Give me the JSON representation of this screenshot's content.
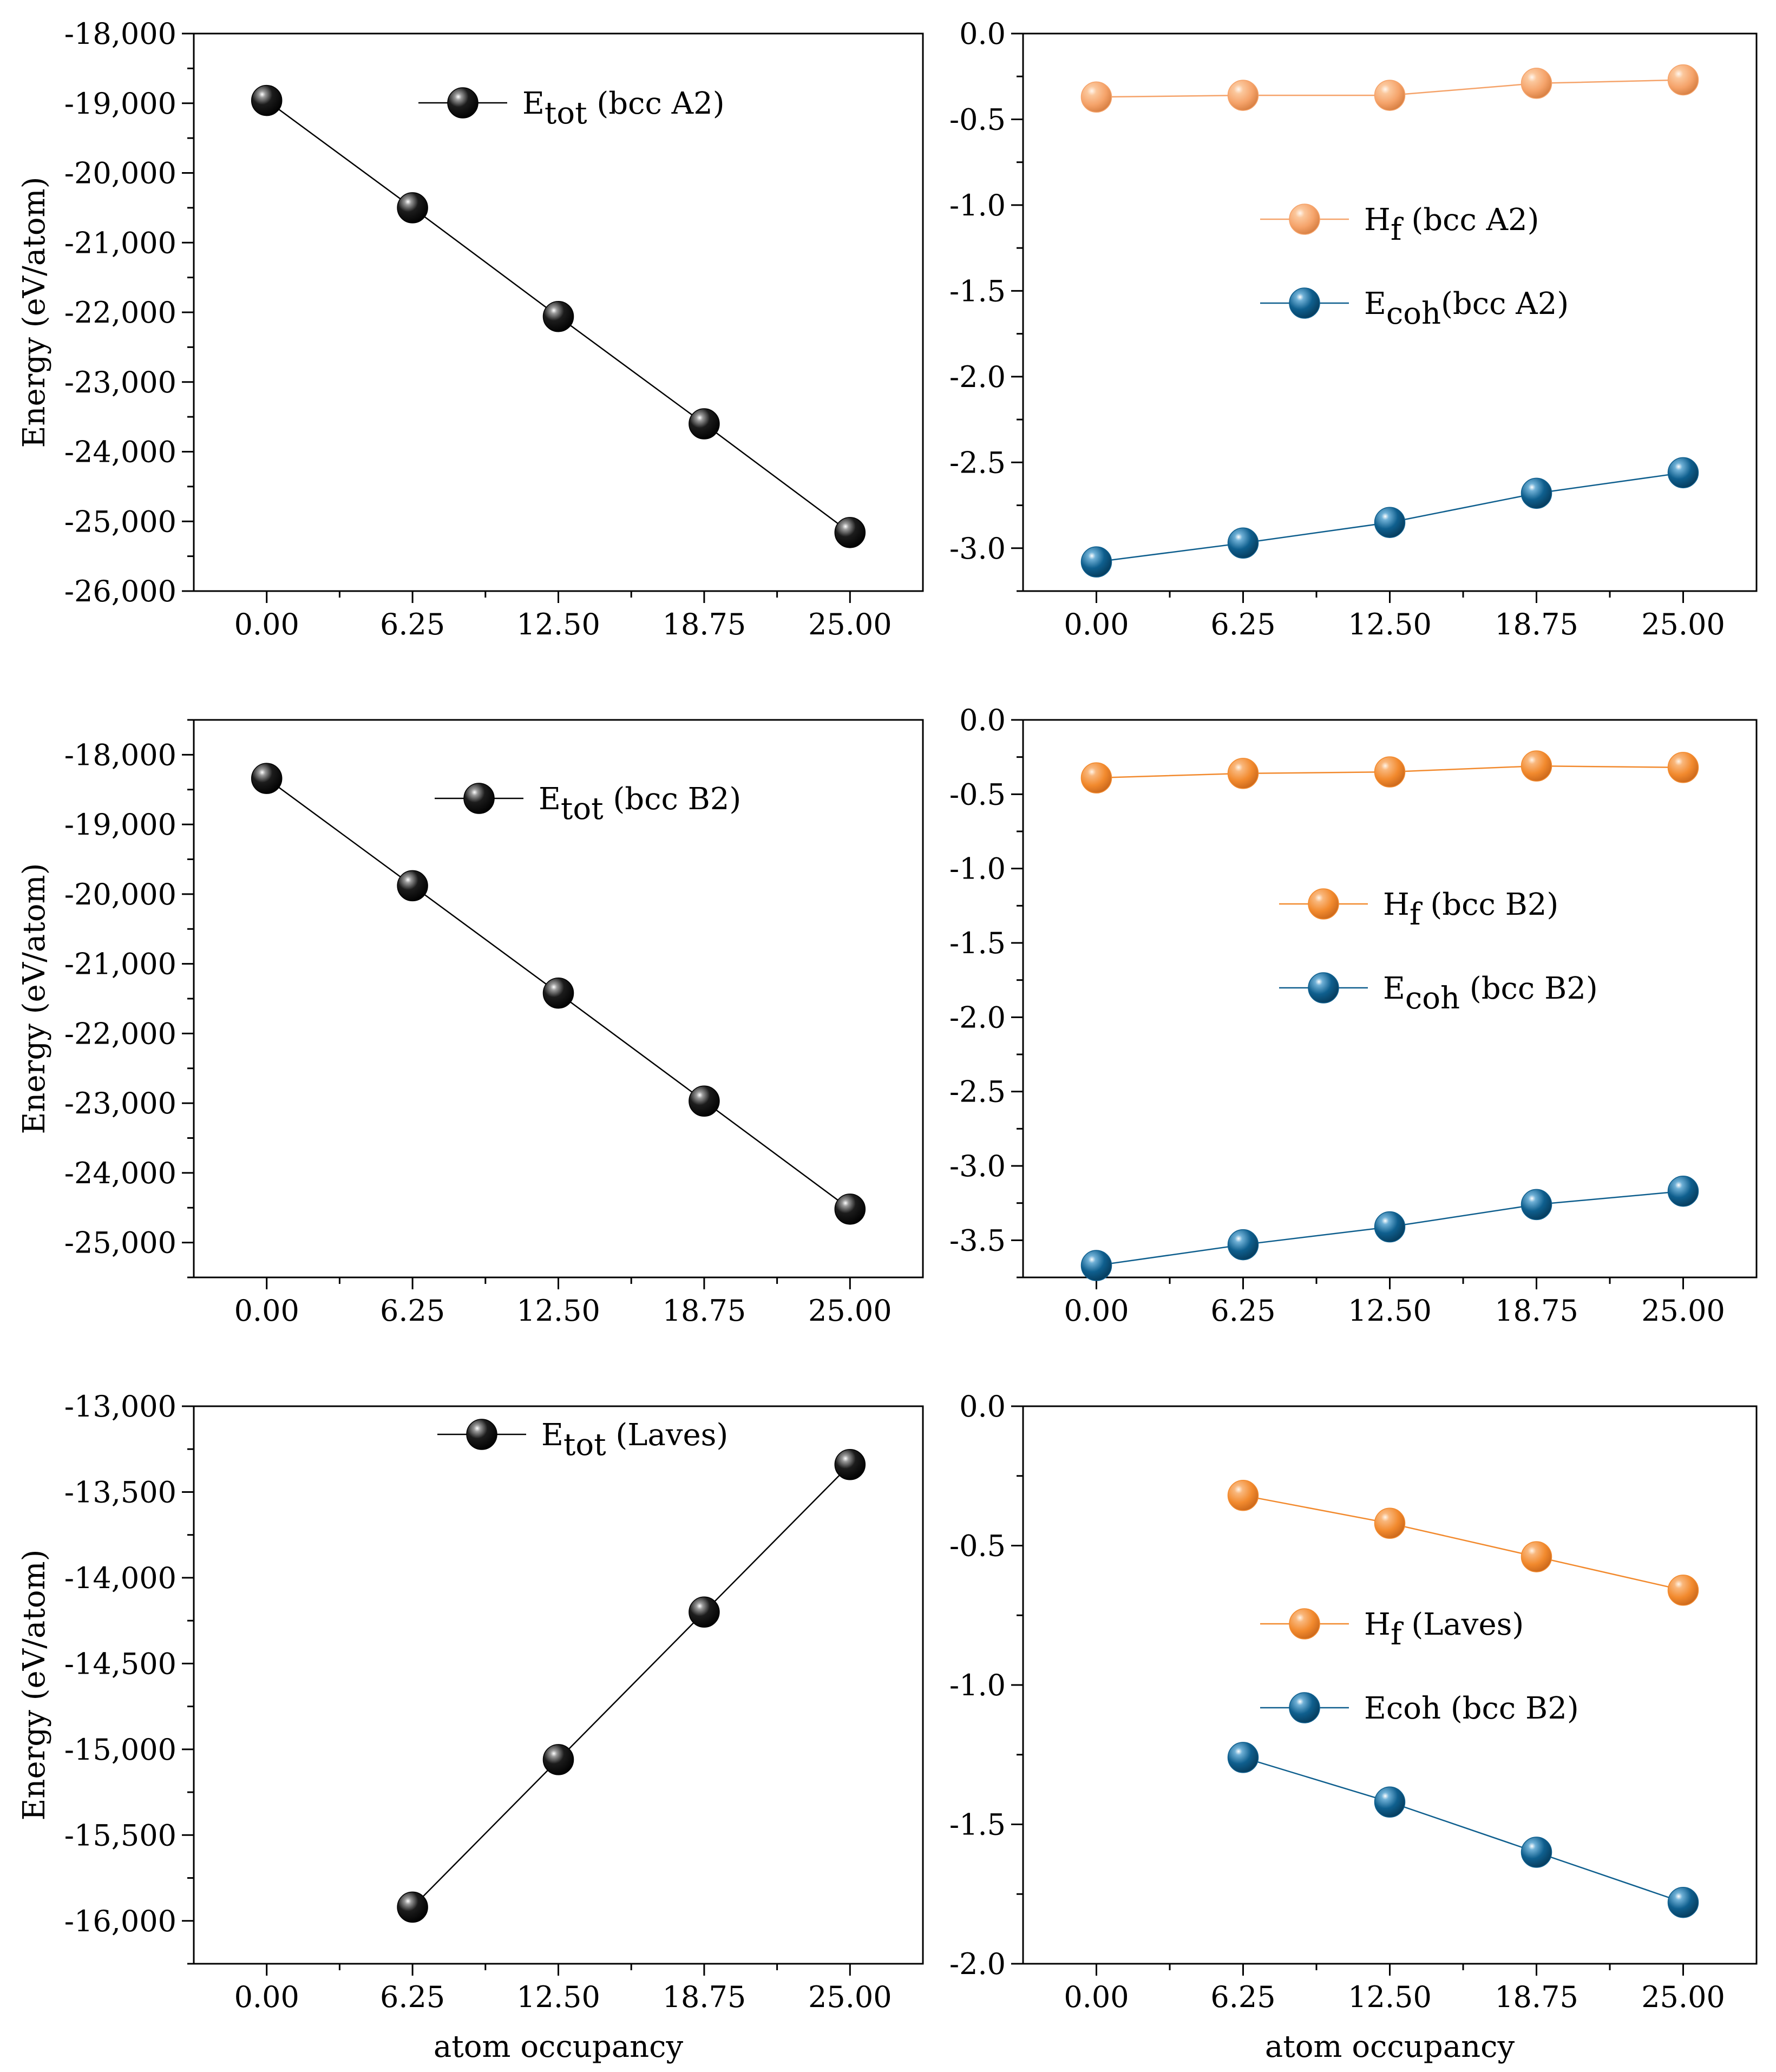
{
  "figure": {
    "colors": {
      "black": "#111111",
      "orange": "#f28a2e",
      "orange_light": "#f5a36a",
      "blue": "#0f5f8e"
    }
  },
  "chart_data": [
    {
      "type": "line",
      "ylabel": "Energy (eV/atom)",
      "xlabel": "",
      "x_ticks": [
        "0.00",
        "6.25",
        "12.50",
        "18.75",
        "25.00"
      ],
      "y_ticks": [
        "-18,000",
        "-19,000",
        "-20,000",
        "-21,000",
        "-22,000",
        "-23,000",
        "-24,000",
        "-25,000",
        "-26,000"
      ],
      "xlim": [
        -3.125,
        28.125
      ],
      "ylim": [
        -26000,
        -18000
      ],
      "y_minor": true,
      "legend_position": "top-right",
      "series": [
        {
          "name": "E",
          "subscript": "tot",
          "suffix": " (bcc A2)",
          "color": "black",
          "x": [
            0,
            6.25,
            12.5,
            18.75,
            25
          ],
          "y": [
            -18960,
            -20500,
            -22060,
            -23600,
            -25160
          ]
        }
      ]
    },
    {
      "type": "line",
      "ylabel": "",
      "xlabel": "",
      "x_ticks": [
        "0.00",
        "6.25",
        "12.50",
        "18.75",
        "25.00"
      ],
      "y_ticks": [
        "0.0",
        "-0.5",
        "-1.0",
        "-1.5",
        "-2.0",
        "-2.5",
        "-3.0"
      ],
      "xlim": [
        -3.125,
        28.125
      ],
      "ylim": [
        -3.25,
        0
      ],
      "y_minor": true,
      "legend_position": "center-right",
      "series": [
        {
          "name": "H",
          "subscript": "f",
          "suffix": " (bcc A2)",
          "color": "orange_light",
          "x": [
            0,
            6.25,
            12.5,
            18.75,
            25
          ],
          "y": [
            -0.37,
            -0.36,
            -0.36,
            -0.29,
            -0.27
          ]
        },
        {
          "name": "E",
          "subscript": "coh",
          "suffix": "(bcc A2)",
          "color": "blue",
          "x": [
            0,
            6.25,
            12.5,
            18.75,
            25
          ],
          "y": [
            -3.08,
            -2.97,
            -2.85,
            -2.68,
            -2.56
          ]
        }
      ]
    },
    {
      "type": "line",
      "ylabel": "Energy (eV/atom)",
      "xlabel": "",
      "x_ticks": [
        "0.00",
        "6.25",
        "12.50",
        "18.75",
        "25.00"
      ],
      "y_ticks": [
        "-18,000",
        "-19,000",
        "-20,000",
        "-21,000",
        "-22,000",
        "-23,000",
        "-24,000",
        "-25,000"
      ],
      "xlim": [
        -3.125,
        28.125
      ],
      "ylim": [
        -25500,
        -17500
      ],
      "y_minor": true,
      "legend_position": "top-right",
      "series": [
        {
          "name": "E",
          "subscript": "tot",
          "suffix": " (bcc B2)",
          "color": "black",
          "x": [
            0,
            6.25,
            12.5,
            18.75,
            25
          ],
          "y": [
            -18340,
            -19880,
            -21420,
            -22970,
            -24520
          ]
        }
      ]
    },
    {
      "type": "line",
      "ylabel": "",
      "xlabel": "",
      "x_ticks": [
        "0.00",
        "6.25",
        "12.50",
        "18.75",
        "25.00"
      ],
      "y_ticks": [
        "0.0",
        "-0.5",
        "-1.0",
        "-1.5",
        "-2.0",
        "-2.5",
        "-3.0",
        "-3.5"
      ],
      "xlim": [
        -3.125,
        28.125
      ],
      "ylim": [
        -3.75,
        0
      ],
      "y_minor": true,
      "legend_position": "center-right",
      "series": [
        {
          "name": "H",
          "subscript": "f",
          "suffix": " (bcc B2)",
          "color": "orange",
          "x": [
            0,
            6.25,
            12.5,
            18.75,
            25
          ],
          "y": [
            -0.39,
            -0.36,
            -0.35,
            -0.31,
            -0.32
          ]
        },
        {
          "name": "E",
          "subscript": "coh",
          "suffix": " (bcc B2)",
          "color": "blue",
          "x": [
            0,
            6.25,
            12.5,
            18.75,
            25
          ],
          "y": [
            -3.67,
            -3.53,
            -3.41,
            -3.26,
            -3.17
          ]
        }
      ]
    },
    {
      "type": "line",
      "ylabel": "Energy (eV/atom)",
      "xlabel": "atom occupancy",
      "x_ticks": [
        "0.00",
        "6.25",
        "12.50",
        "18.75",
        "25.00"
      ],
      "y_ticks": [
        "-13,000",
        "-13,500",
        "-14,000",
        "-14,500",
        "-15,000",
        "-15,500",
        "-16,000"
      ],
      "xlim": [
        -3.125,
        28.125
      ],
      "ylim": [
        -16250,
        -13000
      ],
      "y_minor": true,
      "legend_position": "top-right",
      "series": [
        {
          "name": "E",
          "subscript": "tot",
          "suffix": " (Laves)",
          "color": "black",
          "x": [
            6.25,
            12.5,
            18.75,
            25
          ],
          "y": [
            -15920,
            -15060,
            -14200,
            -13340
          ]
        }
      ]
    },
    {
      "type": "line",
      "ylabel": "",
      "xlabel": "atom occupancy",
      "x_ticks": [
        "0.00",
        "6.25",
        "12.50",
        "18.75",
        "25.00"
      ],
      "y_ticks": [
        "0.0",
        "-0.5",
        "-1.0",
        "-1.5",
        "-2.0"
      ],
      "xlim": [
        -3.125,
        28.125
      ],
      "ylim": [
        -2.0,
        0
      ],
      "y_minor": true,
      "legend_position": "center-right",
      "series": [
        {
          "name": "H",
          "subscript": "f",
          "suffix": " (Laves)",
          "color": "orange",
          "x": [
            6.25,
            12.5,
            18.75,
            25
          ],
          "y": [
            -0.32,
            -0.42,
            -0.54,
            -0.66
          ]
        },
        {
          "name": "Ecoh (bcc B2)",
          "subscript": "",
          "suffix": "",
          "color": "blue",
          "x": [
            6.25,
            12.5,
            18.75,
            25
          ],
          "y": [
            -1.26,
            -1.42,
            -1.6,
            -1.78
          ]
        }
      ]
    }
  ]
}
